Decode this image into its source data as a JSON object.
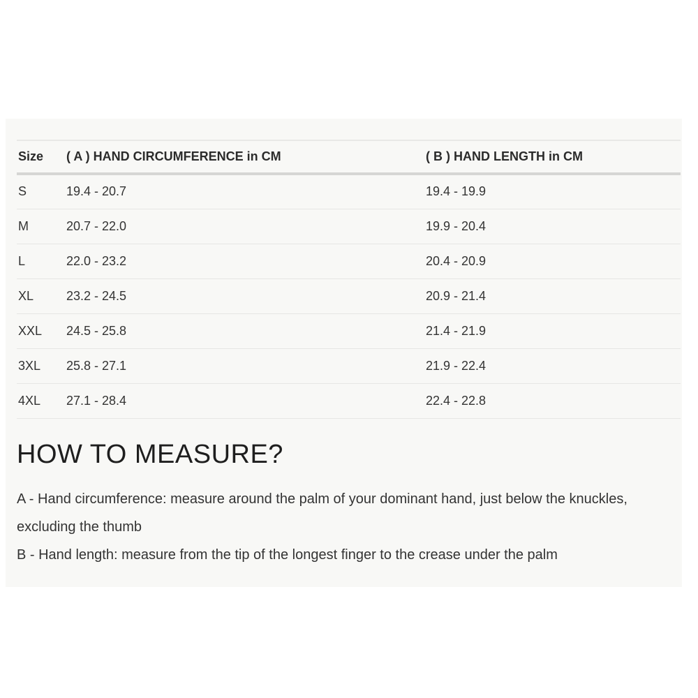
{
  "size_chart": {
    "columns": [
      "Size",
      "( A ) HAND CIRCUMFERENCE in CM",
      "( B ) HAND LENGTH in CM"
    ],
    "rows": [
      {
        "size": "S",
        "hand_circumference_cm": "19.4 - 20.7",
        "hand_length_cm": "19.4 - 19.9"
      },
      {
        "size": "M",
        "hand_circumference_cm": "20.7 - 22.0",
        "hand_length_cm": "19.9 - 20.4"
      },
      {
        "size": "L",
        "hand_circumference_cm": "22.0 - 23.2",
        "hand_length_cm": "20.4 - 20.9"
      },
      {
        "size": "XL",
        "hand_circumference_cm": "23.2 - 24.5",
        "hand_length_cm": "20.9 - 21.4"
      },
      {
        "size": "XXL",
        "hand_circumference_cm": "24.5 - 25.8",
        "hand_length_cm": "21.4 - 21.9"
      },
      {
        "size": "3XL",
        "hand_circumference_cm": "25.8 - 27.1",
        "hand_length_cm": "21.9 - 22.4"
      },
      {
        "size": "4XL",
        "hand_circumference_cm": "27.1 - 28.4",
        "hand_length_cm": "22.4 - 22.8"
      }
    ]
  },
  "how_to_measure": {
    "title": "HOW TO MEASURE?",
    "instructions": [
      "A - Hand circumference: measure around the palm of your dominant hand, just below the knuckles, excluding the thumb",
      "B - Hand length: measure from the tip of the longest finger to the crease under the palm"
    ]
  },
  "colors": {
    "page_bg": "#ffffff",
    "panel_bg": "#f8f8f6",
    "text": "#333333",
    "row_divider": "#e6e6e4",
    "header_divider": "#d6d6d4"
  }
}
